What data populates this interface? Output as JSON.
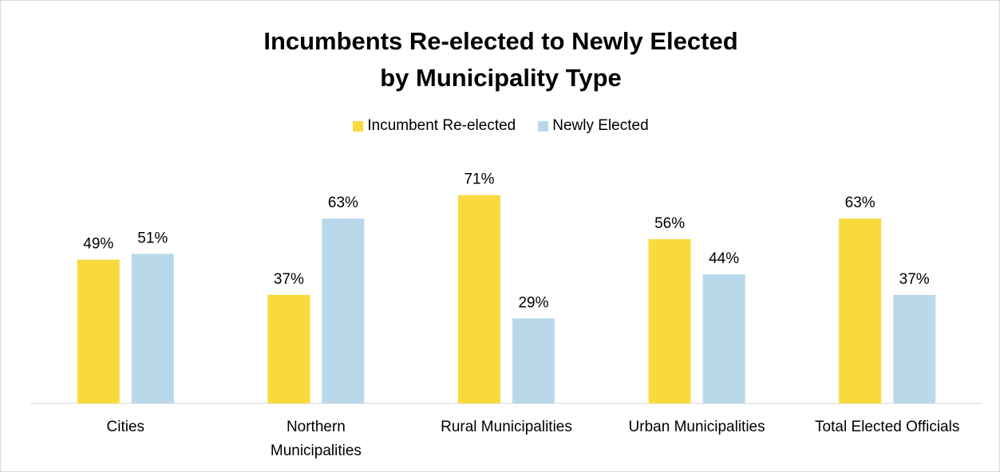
{
  "chart_data": {
    "type": "bar",
    "title": [
      "Incumbents Re-elected to Newly Elected",
      "by Municipality Type"
    ],
    "categories": [
      [
        "Cities"
      ],
      [
        "Northern",
        "Municipalities"
      ],
      [
        "Rural Municipalities"
      ],
      [
        "Urban Municipalities"
      ],
      [
        "Total Elected Officials"
      ]
    ],
    "series": [
      {
        "name": "Incumbent Re-elected",
        "color": "#F9DA3E",
        "values": [
          49,
          37,
          71,
          56,
          63
        ],
        "labels": [
          "49%",
          "37%",
          "71%",
          "56%",
          "63%"
        ]
      },
      {
        "name": "Newly Elected",
        "color": "#B9D9EA",
        "values": [
          51,
          63,
          29,
          44,
          37
        ],
        "labels": [
          "51%",
          "63%",
          "29%",
          "44%",
          "37%"
        ]
      }
    ],
    "ylim": [
      0,
      80
    ],
    "legend_position": "top",
    "grid": false,
    "axis_color": "#d9d9d9"
  }
}
